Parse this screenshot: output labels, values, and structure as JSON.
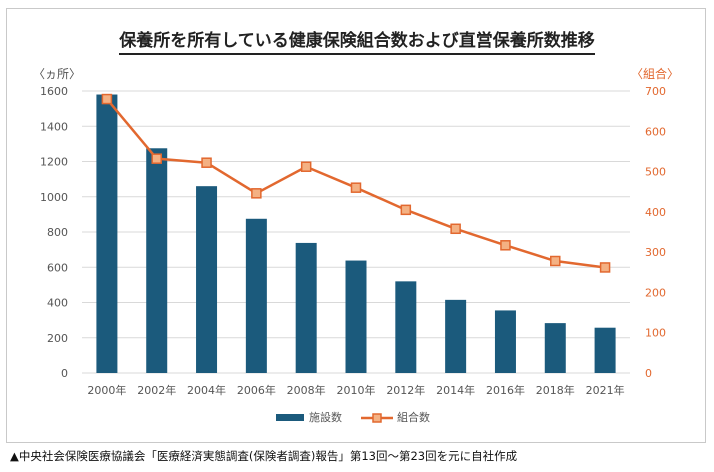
{
  "chart_data": {
    "type": "bar+line",
    "title": "保養所を所有している健康保険組合数および直営保養所数推移",
    "left_axis_label": "〈ヵ所〉",
    "right_axis_label": "〈組合〉",
    "categories": [
      "2000年",
      "2002年",
      "2004年",
      "2006年",
      "2008年",
      "2010年",
      "2012年",
      "2014年",
      "2016年",
      "2018年",
      "2021年"
    ],
    "left_ylim": [
      0,
      1600
    ],
    "left_ticks": [
      "0",
      "200",
      "400",
      "600",
      "800",
      "1000",
      "1200",
      "1400",
      "1600"
    ],
    "right_ylim": [
      0,
      700
    ],
    "right_ticks": [
      "0",
      "100",
      "200",
      "300",
      "400",
      "500",
      "600",
      "700"
    ],
    "series": [
      {
        "name": "施設数",
        "type": "bar",
        "axis": "left",
        "values": [
          1580,
          1275,
          1060,
          875,
          738,
          638,
          520,
          415,
          355,
          283,
          257
        ]
      },
      {
        "name": "組合数",
        "type": "line",
        "axis": "right",
        "values": [
          680,
          532,
          522,
          446,
          512,
          460,
          405,
          358,
          317,
          278,
          262
        ]
      }
    ],
    "colors": {
      "bar": "#1b5a7c",
      "line": "#e2682f",
      "marker_fill": "#f4b183",
      "grid": "#d9d9d9",
      "axis_text": "#555555"
    },
    "grid": true,
    "legend_position": "bottom-center"
  },
  "source_note": "▲中央社会保険医療協議会「医療経済実態調査(保険者調査)報告」第13回～第23回を元に自社作成"
}
